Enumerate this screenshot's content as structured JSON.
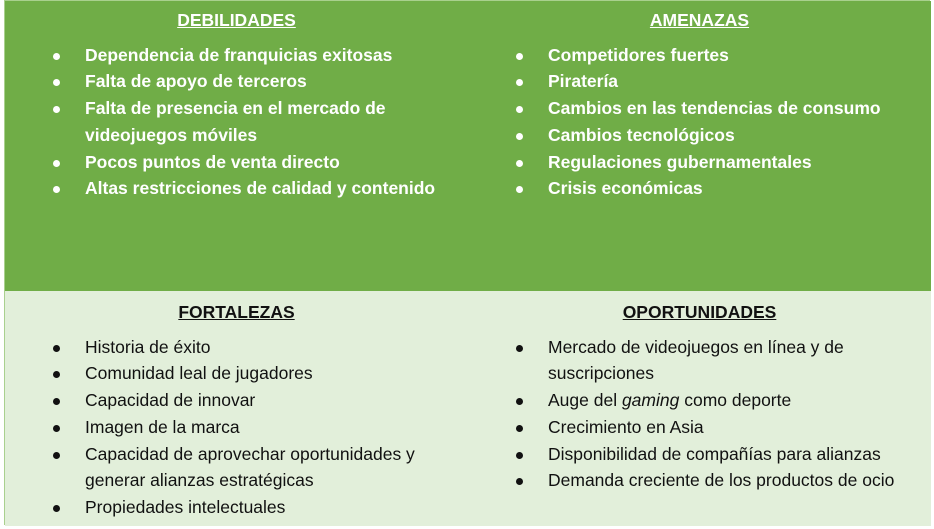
{
  "debilidades": {
    "title": "DEBILIDADES",
    "items": [
      "Dependencia de franquicias exitosas",
      "Falta de apoyo de terceros",
      "Falta de presencia en el mercado de videojuegos móviles",
      "Pocos puntos de venta directo",
      "Altas restricciones de calidad y contenido"
    ]
  },
  "amenazas": {
    "title": "AMENAZAS",
    "items": [
      "Competidores fuertes",
      "Piratería",
      "Cambios en las tendencias de consumo",
      "Cambios tecnológicos",
      "Regulaciones gubernamentales",
      "Crisis económicas"
    ]
  },
  "fortalezas": {
    "title": "FORTALEZAS",
    "items": [
      "Historia de éxito",
      "Comunidad leal de jugadores",
      "Capacidad de innovar",
      "Imagen de la marca",
      "Capacidad de aprovechar oportunidades y generar alianzas estratégicas",
      "Propiedades intelectuales"
    ]
  },
  "oportunidades": {
    "title": "OPORTUNIDADES",
    "items": [
      "Mercado de videojuegos en línea y de suscripciones",
      "Auge del gaming como deporte",
      "Crecimiento en Asia",
      "Disponibilidad de compañías para alianzas",
      "Demanda creciente de los productos de ocio"
    ]
  },
  "colors": {
    "dark": "#70ad47",
    "light": "#e2efda"
  }
}
